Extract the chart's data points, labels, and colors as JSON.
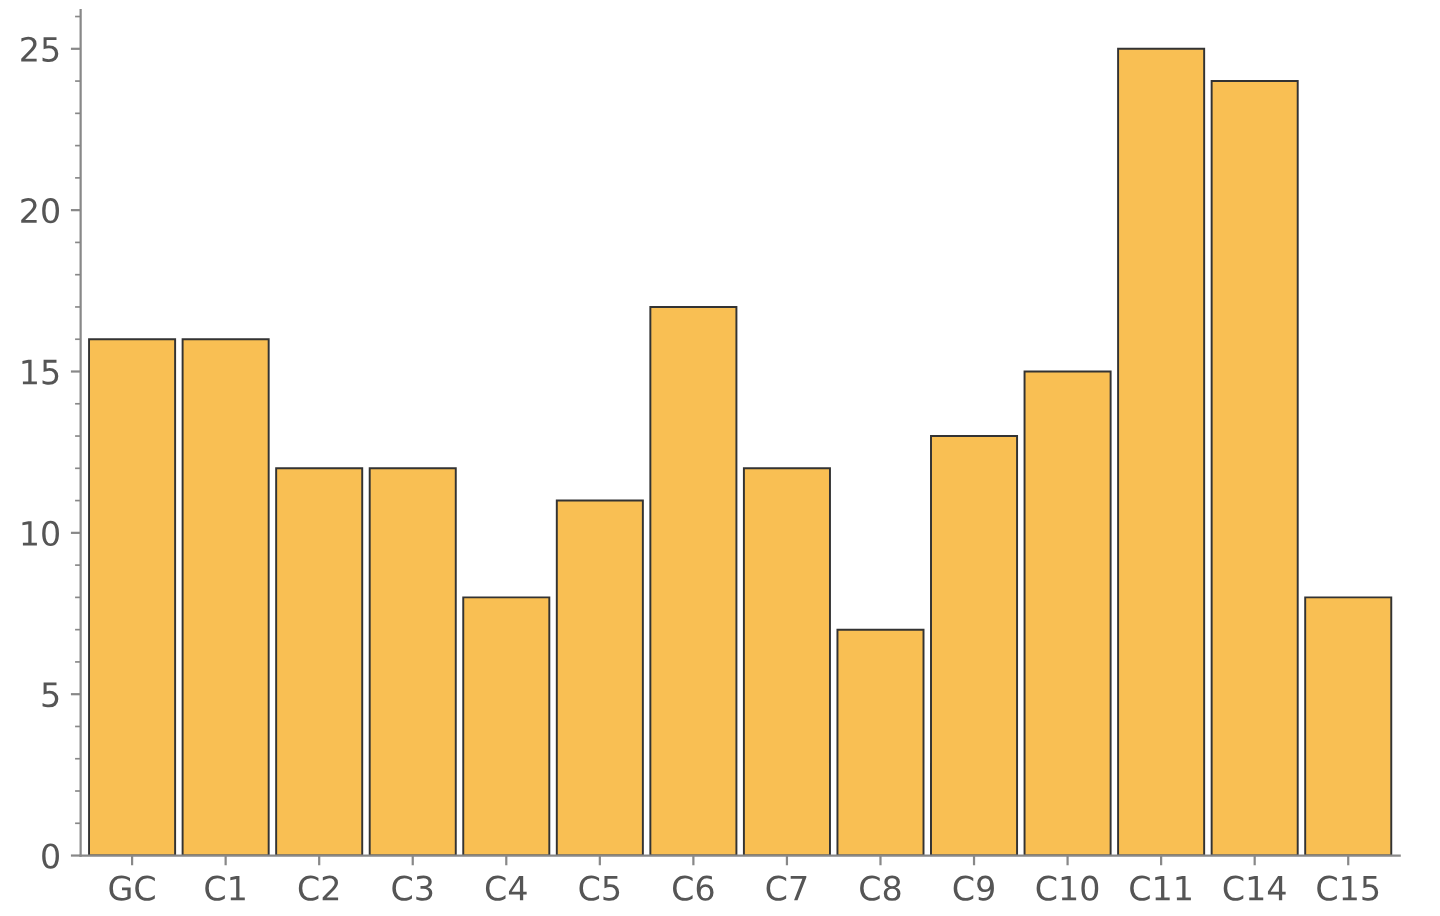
{
  "chart_data": {
    "type": "bar",
    "categories": [
      "GC",
      "C1",
      "C2",
      "C3",
      "C4",
      "C5",
      "C6",
      "C7",
      "C8",
      "C9",
      "C10",
      "C11",
      "C14",
      "C15"
    ],
    "values": [
      16,
      16,
      12,
      12,
      8,
      11,
      17,
      12,
      7,
      13,
      15,
      25,
      24,
      8
    ],
    "color": "#f9bf53",
    "ylim": [
      0,
      26.2
    ],
    "yticks": [
      0,
      5,
      10,
      15,
      20,
      25
    ],
    "grid": false
  }
}
